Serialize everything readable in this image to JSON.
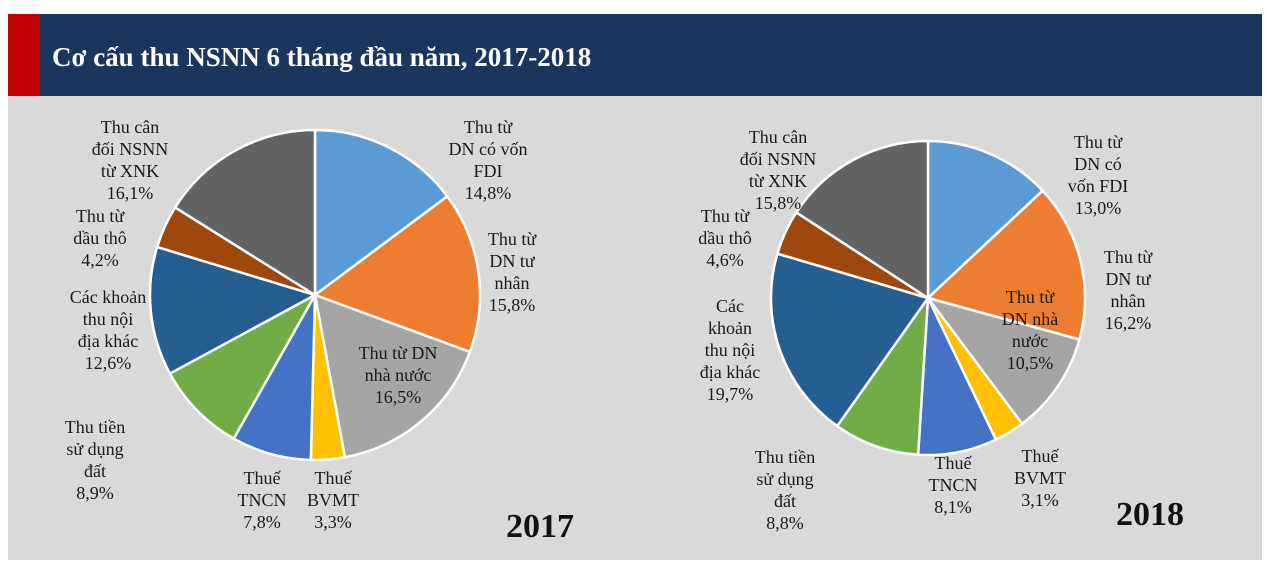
{
  "title": "Cơ cấu thu NSNN 6 tháng đầu năm, 2017-2018",
  "chart_data": [
    {
      "type": "pie",
      "title": "2017",
      "categories": [
        "Thu từ\nDN có vốn\nFDI",
        "Thu từ\nDN tư\nnhân",
        "Thu từ DN\nnhà nước",
        "Thuế\nBVMT",
        "Thuế\nTNCN",
        "Thu tiền\nsử dụng\nđất",
        "Các khoản\nthu nội\nđịa khác",
        "Thu từ\ndầu thô",
        "Thu cân\nđối NSNN\ntừ XNK"
      ],
      "values": [
        14.8,
        15.8,
        16.5,
        3.3,
        7.8,
        8.9,
        12.6,
        4.2,
        16.1
      ],
      "value_labels": [
        "14,8%",
        "15,8%",
        "16,5%",
        "3,3%",
        "7,8%",
        "8,9%",
        "12,6%",
        "4,2%",
        "16,1%"
      ],
      "colors": [
        "#5b9bd5",
        "#ed7d31",
        "#a5a5a5",
        "#ffc000",
        "#4472c4",
        "#70ad47",
        "#255e91",
        "#9e480e",
        "#636363"
      ]
    },
    {
      "type": "pie",
      "title": "2018",
      "categories": [
        "Thu từ\nDN có\nvốn FDI",
        "Thu từ\nDN tư\nnhân",
        "Thu từ\nDN nhà\nnước",
        "Thuế\nBVMT",
        "Thuế\nTNCN",
        "Thu tiền\nsử dụng\nđất",
        "Các\nkhoản\nthu nội\nđịa khác",
        "Thu từ\ndầu thô",
        "Thu cân\nđối NSNN\ntừ XNK"
      ],
      "values": [
        13.0,
        16.2,
        10.5,
        3.1,
        8.1,
        8.8,
        19.7,
        4.6,
        15.8
      ],
      "value_labels": [
        "13,0%",
        "16,2%",
        "10,5%",
        "3,1%",
        "8,1%",
        "8,8%",
        "19,7%",
        "4,6%",
        "15,8%"
      ],
      "colors": [
        "#5b9bd5",
        "#ed7d31",
        "#a5a5a5",
        "#ffc000",
        "#4472c4",
        "#70ad47",
        "#255e91",
        "#9e480e",
        "#636363"
      ]
    }
  ]
}
